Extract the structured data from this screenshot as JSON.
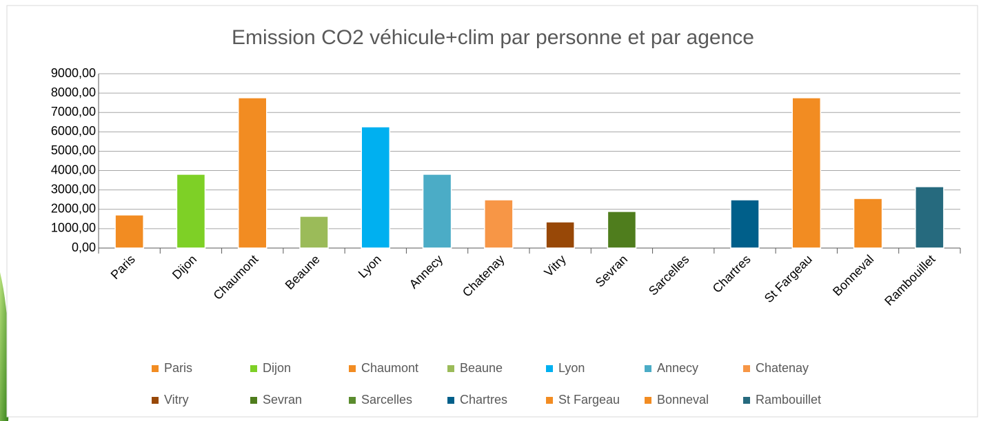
{
  "chart_data": {
    "type": "bar",
    "title": "Emission CO2 véhicule+clim par personne et par agence",
    "categories": [
      "Paris",
      "Dijon",
      "Chaumont",
      "Beaune",
      "Lyon",
      "Annecy",
      "Chatenay",
      "Vitry",
      "Sevran",
      "Sarcelles",
      "Chartres",
      "St Fargeau",
      "Bonneval",
      "Rambouillet"
    ],
    "values": [
      1710,
      3810,
      7760,
      1640,
      6260,
      3810,
      2490,
      1350,
      1890,
      0,
      2490,
      7760,
      2560,
      3170
    ],
    "colors": [
      "#f28c22",
      "#7ed026",
      "#f28c22",
      "#9bbb59",
      "#00b0f0",
      "#4bacc6",
      "#f79646",
      "#984807",
      "#4f7d1d",
      "#5b8c2e",
      "#005f8a",
      "#f28c22",
      "#f28c22",
      "#266a7e"
    ],
    "ylim": [
      0,
      9000
    ],
    "yticks": [
      {
        "value": 0,
        "label": "0,00"
      },
      {
        "value": 1000,
        "label": "1000,00"
      },
      {
        "value": 2000,
        "label": "2000,00"
      },
      {
        "value": 3000,
        "label": "3000,00"
      },
      {
        "value": 4000,
        "label": "4000,00"
      },
      {
        "value": 5000,
        "label": "5000,00"
      },
      {
        "value": 6000,
        "label": "6000,00"
      },
      {
        "value": 7000,
        "label": "7000,00"
      },
      {
        "value": 8000,
        "label": "8000,00"
      },
      {
        "value": 9000,
        "label": "9000,00"
      }
    ],
    "grid": true,
    "legend": "bottom"
  }
}
